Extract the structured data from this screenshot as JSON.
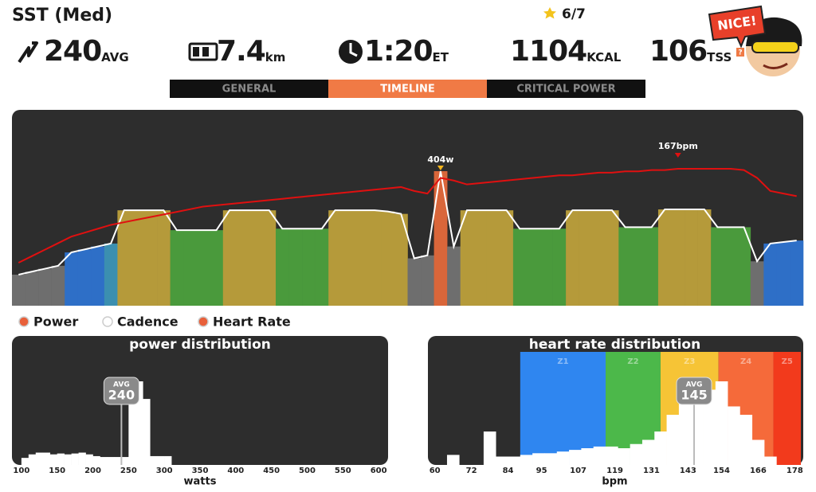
{
  "header": {
    "title": "SST (Med)",
    "stars": "6/7",
    "stats": [
      {
        "value": "240",
        "unit": "AVG"
      },
      {
        "value": "7.4",
        "unit": "km"
      },
      {
        "value": "1:20",
        "unit": "ET"
      },
      {
        "value": "1104",
        "unit": "KCAL"
      },
      {
        "value": "106",
        "unit": "TSS"
      }
    ],
    "help": "?",
    "badge": "NICE!"
  },
  "tabs": {
    "items": [
      "GENERAL",
      "TIMELINE",
      "CRITICAL POWER"
    ],
    "active": "TIMELINE",
    "active_color": "#f07a45"
  },
  "chart_data": [
    {
      "type": "combo",
      "legend": [
        {
          "name": "Power",
          "color": "#e8603a"
        },
        {
          "name": "Cadence",
          "color": "#ffffff"
        },
        {
          "name": "Heart Rate",
          "color": "#e8603a"
        }
      ],
      "power": {
        "color": "#ffffff",
        "values": [
          55,
          65,
          75,
          85,
          130,
          140,
          150,
          160,
          272,
          272,
          272,
          272,
          205,
          205,
          205,
          205,
          272,
          272,
          272,
          272,
          210,
          210,
          210,
          210,
          272,
          272,
          272,
          272,
          268,
          260,
          110,
          120,
          404,
          150,
          272,
          272,
          272,
          272,
          210,
          210,
          210,
          210,
          272,
          272,
          272,
          272,
          215,
          215,
          215,
          275,
          275,
          275,
          275,
          215,
          215,
          215,
          100,
          160,
          165,
          170
        ],
        "bar_colors": [
          "#6e6e6e",
          "#6e6e6e",
          "#6e6e6e",
          "#6e6e6e",
          "#2e6fc7",
          "#2e6fc7",
          "#2e6fc7",
          "#3b8fb0",
          "#b59a3a",
          "#b59a3a",
          "#b59a3a",
          "#b59a3a",
          "#4a9a3c",
          "#4a9a3c",
          "#4a9a3c",
          "#4a9a3c",
          "#b59a3a",
          "#b59a3a",
          "#b59a3a",
          "#b59a3a",
          "#4a9a3c",
          "#4a9a3c",
          "#4a9a3c",
          "#4a9a3c",
          "#b59a3a",
          "#b59a3a",
          "#b59a3a",
          "#b59a3a",
          "#b59a3a",
          "#b59a3a",
          "#6e6e6e",
          "#6e6e6e",
          "#d9663a",
          "#6e6e6e",
          "#b59a3a",
          "#b59a3a",
          "#b59a3a",
          "#b59a3a",
          "#4a9a3c",
          "#4a9a3c",
          "#4a9a3c",
          "#4a9a3c",
          "#b59a3a",
          "#b59a3a",
          "#b59a3a",
          "#b59a3a",
          "#4a9a3c",
          "#4a9a3c",
          "#4a9a3c",
          "#b59a3a",
          "#b59a3a",
          "#b59a3a",
          "#b59a3a",
          "#4a9a3c",
          "#4a9a3c",
          "#4a9a3c",
          "#6e6e6e",
          "#2e6fc7",
          "#2e6fc7",
          "#2e6fc7"
        ],
        "peak_label": "404w"
      },
      "heart_rate": {
        "color": "#e01010",
        "values": [
          95,
          100,
          105,
          110,
          115,
          118,
          121,
          124,
          126,
          128,
          130,
          132,
          134,
          136,
          138,
          139,
          140,
          141,
          142,
          143,
          144,
          145,
          146,
          147,
          148,
          149,
          150,
          151,
          152,
          153,
          150,
          148,
          160,
          158,
          155,
          156,
          157,
          158,
          159,
          160,
          161,
          162,
          162,
          163,
          164,
          164,
          165,
          165,
          166,
          166,
          167,
          167,
          167,
          167,
          167,
          166,
          160,
          150,
          148,
          146
        ],
        "peak_label": "167bpm"
      }
    },
    {
      "type": "histogram",
      "title": "power distribution",
      "xlabel": "watts",
      "bins": [
        100,
        110,
        120,
        130,
        140,
        150,
        160,
        170,
        180,
        190,
        200,
        210,
        220,
        230,
        240,
        250,
        260,
        270,
        280,
        290,
        300,
        310
      ],
      "counts": [
        8,
        12,
        14,
        14,
        12,
        13,
        12,
        13,
        14,
        12,
        10,
        9,
        9,
        9,
        9,
        95,
        95,
        75,
        10,
        10,
        10
      ],
      "color": "#ffffff",
      "xlim": [
        89,
        611
      ],
      "xticks": [
        100,
        150,
        200,
        250,
        300,
        350,
        400,
        450,
        500,
        550,
        600
      ],
      "avg": {
        "label": "AVG",
        "value": 240
      }
    },
    {
      "type": "histogram",
      "title": "heart rate distribution",
      "xlabel": "bpm",
      "bins": [
        64,
        68,
        72,
        76,
        80,
        84,
        88,
        92,
        96,
        100,
        104,
        108,
        112,
        116,
        120,
        124,
        128,
        132,
        136,
        140,
        144,
        148,
        152,
        156,
        160,
        164,
        168,
        172
      ],
      "counts": [
        12,
        0,
        0,
        40,
        10,
        10,
        12,
        14,
        14,
        16,
        18,
        20,
        22,
        22,
        20,
        25,
        30,
        40,
        60,
        85,
        95,
        90,
        100,
        70,
        60,
        30,
        10
      ],
      "color": "#ffffff",
      "xlim": [
        58,
        180
      ],
      "xticks": [
        60,
        72,
        84,
        95,
        107,
        119,
        131,
        143,
        154,
        166,
        178
      ],
      "zones": [
        {
          "name": "Z1",
          "color": "#2f86f0",
          "from": 88,
          "to": 116
        },
        {
          "name": "Z2",
          "color": "#4cb84a",
          "from": 116,
          "to": 134
        },
        {
          "name": "Z3",
          "color": "#f6c436",
          "from": 134,
          "to": 153
        },
        {
          "name": "Z4",
          "color": "#f56a3a",
          "from": 153,
          "to": 171
        },
        {
          "name": "Z5",
          "color": "#f23a1c",
          "from": 171,
          "to": 180
        }
      ],
      "avg": {
        "label": "AVG",
        "value": 145
      }
    }
  ]
}
